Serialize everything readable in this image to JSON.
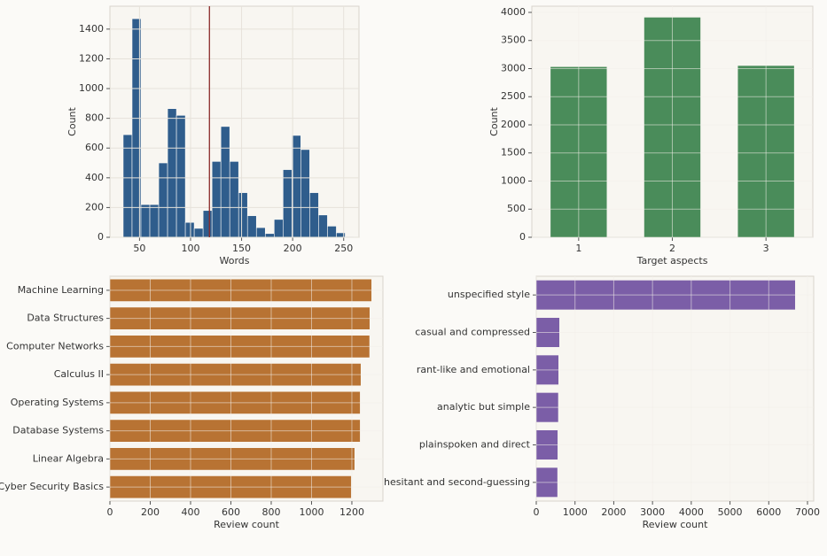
{
  "chart_data": [
    {
      "type": "histogram",
      "x_label": "Words",
      "y_label": "Count",
      "color": "#2f5d8c",
      "bins": [
        34,
        42.7,
        51.4,
        60.1,
        68.8,
        77.5,
        86.2,
        94.9,
        103.6,
        112.3,
        121,
        129.7,
        138.4,
        147.1,
        155.8,
        164.5,
        173.2,
        181.9,
        190.6,
        199.3,
        208,
        216.7,
        225.4,
        234.1,
        242.8,
        251.5,
        260.2
      ],
      "values": [
        690,
        1470,
        220,
        220,
        500,
        865,
        820,
        100,
        60,
        180,
        510,
        745,
        510,
        300,
        145,
        65,
        25,
        120,
        455,
        685,
        590,
        300,
        150,
        75,
        30,
        5
      ],
      "vline": 118.5,
      "vline_color": "#8b2a2a",
      "xlim": [
        21,
        265
      ],
      "xticks": [
        50,
        100,
        150,
        200,
        250
      ],
      "ylim": [
        0,
        1554
      ],
      "yticks": [
        0,
        200,
        400,
        600,
        800,
        1000,
        1200,
        1400
      ],
      "grid": true
    },
    {
      "type": "bar",
      "x_label": "Target aspects",
      "y_label": "Count",
      "color": "#4a8c5a",
      "categories": [
        "1",
        "2",
        "3"
      ],
      "values": [
        3030,
        3910,
        3050
      ],
      "ylim": [
        0,
        4110
      ],
      "yticks": [
        0,
        500,
        1000,
        1500,
        2000,
        2500,
        3000,
        3500,
        4000
      ],
      "grid": true
    },
    {
      "type": "barh",
      "x_label": "Review count",
      "color": "#b87333",
      "categories": [
        "Machine Learning",
        "Data Structures",
        "Computer Networks",
        "Calculus II",
        "Operating Systems",
        "Database Systems",
        "Linear Algebra",
        "Cyber Security Basics"
      ],
      "values": [
        1297,
        1288,
        1287,
        1244,
        1240,
        1240,
        1213,
        1196
      ],
      "xlim": [
        0,
        1354
      ],
      "xticks": [
        0,
        200,
        400,
        600,
        800,
        1000,
        1200
      ],
      "grid": true
    },
    {
      "type": "barh",
      "x_label": "Review count",
      "color": "#7b5ea7",
      "categories": [
        "unspecified style",
        "casual and compressed",
        "rant-like and emotional",
        "analytic but simple",
        "plainspoken and direct",
        "hesitant and second-guessing"
      ],
      "values": [
        6680,
        595,
        572,
        565,
        550,
        545
      ],
      "xlim": [
        0,
        7160
      ],
      "xticks": [
        0,
        1000,
        2000,
        3000,
        4000,
        5000,
        6000,
        7000
      ],
      "grid": true
    }
  ]
}
